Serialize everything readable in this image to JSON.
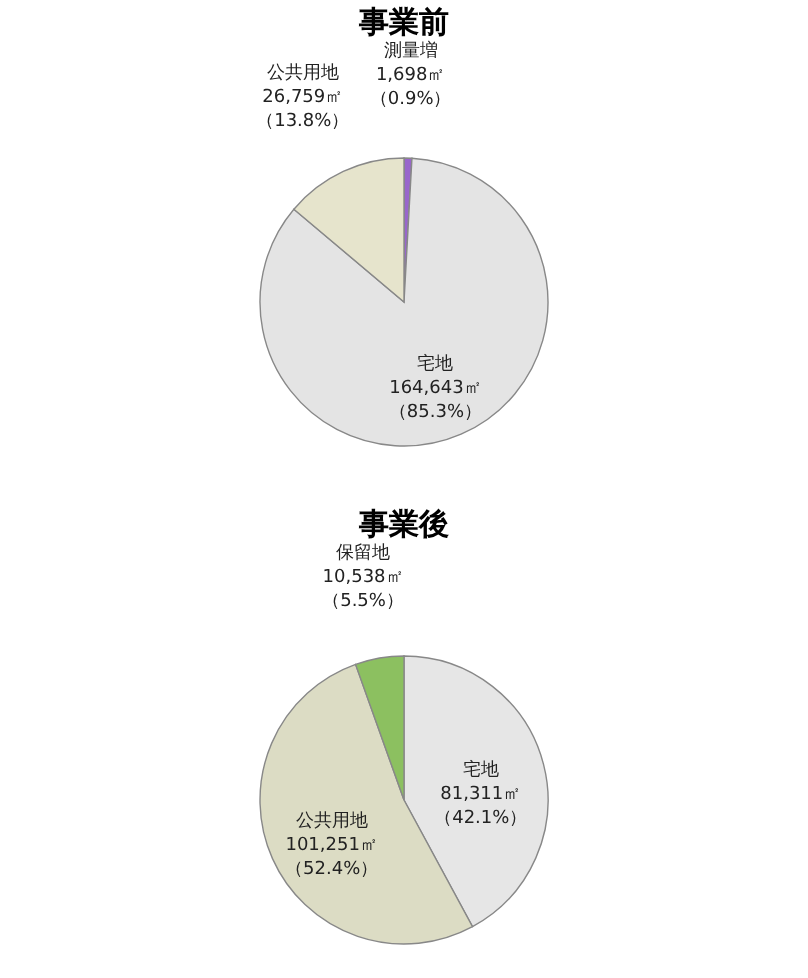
{
  "chart_data": [
    {
      "type": "pie",
      "title": "事業前",
      "categories": [
        "測量増",
        "宅地",
        "公共用地"
      ],
      "values": [
        1698,
        164643,
        26759
      ],
      "colors": [
        "#9966cc",
        "#e4e4e4",
        "#e6e4cc"
      ],
      "value_labels": [
        "1,698㎡（0.9%）",
        "164,643㎡（85.3%）",
        "26,759㎡（13.8%）"
      ]
    },
    {
      "type": "pie",
      "title": "事業後",
      "categories": [
        "宅地",
        "公共用地",
        "保留地"
      ],
      "values": [
        81311,
        101251,
        10538
      ],
      "colors": [
        "#e6e6e6",
        "#dcdcc4",
        "#8cc060"
      ],
      "value_labels": [
        "81,311㎡（42.1%）",
        "101,251㎡（52.4%）",
        "10,538㎡（5.5%）"
      ]
    }
  ]
}
